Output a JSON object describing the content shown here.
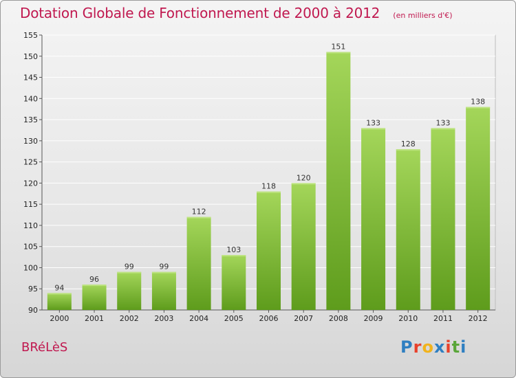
{
  "header": {
    "title": "Dotation Globale de Fonctionnement de 2000 à 2012",
    "subtitle": "(en milliers d'€)"
  },
  "footer": {
    "commune": "BRéLèS",
    "logo_text": "Proxiti",
    "logo_colors": [
      "#2f7fc1",
      "#e8412b",
      "#f1b31c",
      "#2f7fc1",
      "#e8412b",
      "#5aa63a",
      "#2f7fc1"
    ]
  },
  "colors": {
    "title": "#c0184f",
    "bar_top": "#a4d65a",
    "bar_bottom": "#5e9c1c",
    "grid": "#ffffff"
  },
  "chart_data": {
    "type": "bar",
    "title": "Dotation Globale de Fonctionnement de 2000 à 2012",
    "subtitle": "(en milliers d'€)",
    "categories": [
      "2000",
      "2001",
      "2002",
      "2003",
      "2004",
      "2005",
      "2006",
      "2007",
      "2008",
      "2009",
      "2010",
      "2011",
      "2012"
    ],
    "values": [
      94,
      96,
      99,
      99,
      112,
      103,
      118,
      120,
      151,
      133,
      128,
      133,
      138
    ],
    "ylim": [
      90,
      155
    ],
    "yticks": [
      90,
      95,
      100,
      105,
      110,
      115,
      120,
      125,
      130,
      135,
      140,
      145,
      150,
      155
    ],
    "grid": true,
    "data_labels": true
  }
}
